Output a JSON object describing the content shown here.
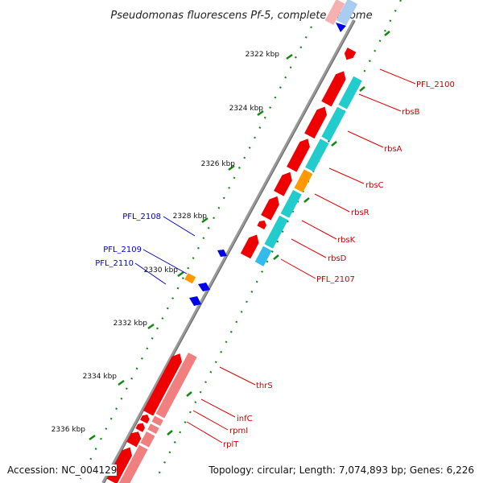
{
  "title": "Pseudomonas fluorescens Pf-5, complete genome",
  "footer": {
    "accession": "Accession: NC_004129",
    "summary": "Topology: circular; Length: 7,074,893 bp; Genes: 6,226"
  },
  "colors": {
    "forward_gene": "#ee0000",
    "forward_gene_light": "#f08080",
    "reverse_gene": "#0000ee",
    "cds_cyan": "#22cccc",
    "cds_orange": "#ff9900",
    "cds_blue": "#33bbee",
    "label_red": "#cc0000",
    "label_blue": "#0000cc",
    "backbone": "#888888",
    "tick_green": "#118811"
  },
  "ruler": [
    {
      "label": "2322 kbp"
    },
    {
      "label": "2324 kbp"
    },
    {
      "label": "2326 kbp"
    },
    {
      "label": "2328 kbp"
    },
    {
      "label": "2330 kbp"
    },
    {
      "label": "2332 kbp"
    },
    {
      "label": "2334 kbp"
    },
    {
      "label": "2336 kbp"
    }
  ],
  "gene_labels": [
    {
      "name": "PFL_2100",
      "strand": "forward"
    },
    {
      "name": "rbsB",
      "strand": "forward"
    },
    {
      "name": "rbsA",
      "strand": "forward"
    },
    {
      "name": "rbsC",
      "strand": "forward"
    },
    {
      "name": "rbsR",
      "strand": "forward"
    },
    {
      "name": "rbsK",
      "strand": "forward"
    },
    {
      "name": "rbsD",
      "strand": "forward"
    },
    {
      "name": "PFL_2107",
      "strand": "forward"
    },
    {
      "name": "PFL_2108",
      "strand": "reverse"
    },
    {
      "name": "PFL_2109",
      "strand": "reverse"
    },
    {
      "name": "PFL_2110",
      "strand": "reverse"
    },
    {
      "name": "thrS",
      "strand": "forward"
    },
    {
      "name": "infC",
      "strand": "forward"
    },
    {
      "name": "rpmI",
      "strand": "forward"
    },
    {
      "name": "rplT",
      "strand": "forward"
    }
  ]
}
